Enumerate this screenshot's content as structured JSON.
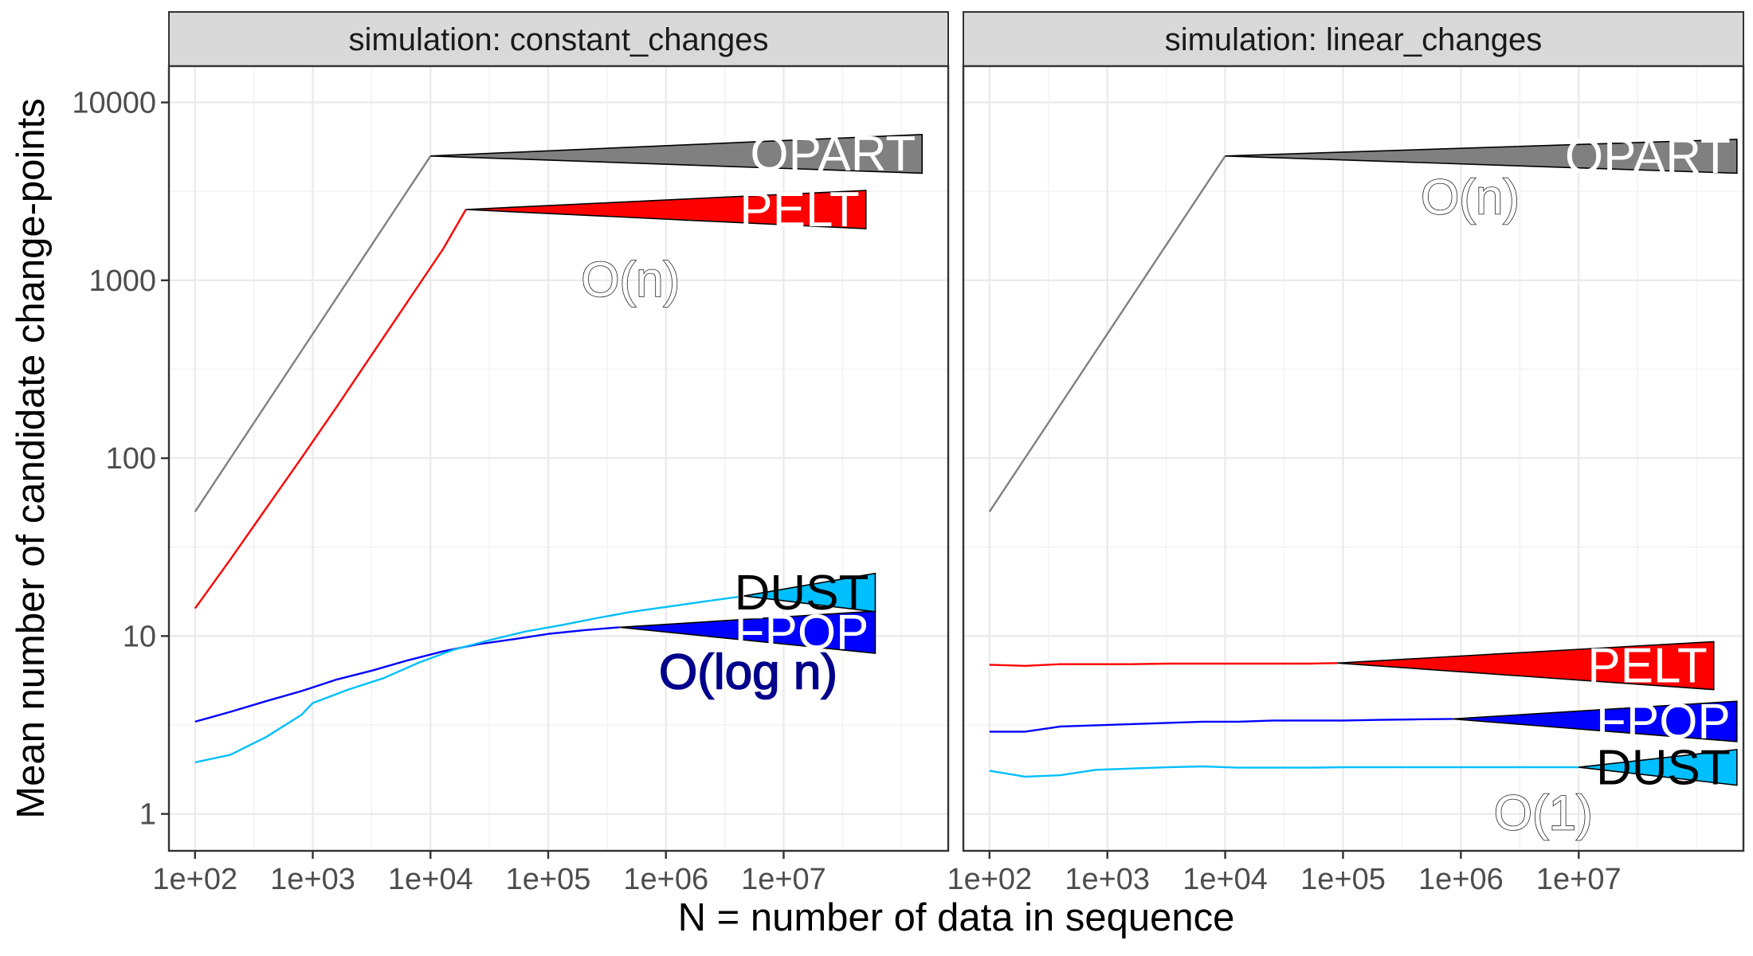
{
  "chart_data": {
    "type": "line",
    "scale": {
      "x": "log10",
      "y": "log10"
    },
    "xlabel": "N = number of data in sequence",
    "ylabel": "Mean number of candidate change-points",
    "x_ticks": [
      {
        "value": 100,
        "label": "1e+02"
      },
      {
        "value": 1000,
        "label": "1e+03"
      },
      {
        "value": 10000,
        "label": "1e+04"
      },
      {
        "value": 100000,
        "label": "1e+05"
      },
      {
        "value": 1000000,
        "label": "1e+06"
      },
      {
        "value": 10000000,
        "label": "1e+07"
      }
    ],
    "y_ticks": [
      {
        "value": 1,
        "label": "1"
      },
      {
        "value": 10,
        "label": "10"
      },
      {
        "value": 100,
        "label": "100"
      },
      {
        "value": 1000,
        "label": "1000"
      },
      {
        "value": 10000,
        "label": "10000"
      }
    ],
    "xlim": [
      60,
      250000000
    ],
    "ylim": [
      0.62,
      16000
    ],
    "grid": true,
    "colors": {
      "OPART": "#808080",
      "PELT": "#ff0000",
      "FPOP": "#0000ff",
      "DUST": "#00bfff",
      "strip_bg": "#d9d9d9",
      "grid": "#ebebeb",
      "complexity_blue": "#00008b"
    },
    "panels": [
      {
        "strip": "simulation: constant_changes",
        "series": [
          {
            "name": "OPART",
            "color": "#808080",
            "points": [
              [
                100,
                50
              ],
              [
                10000,
                5000
              ]
            ],
            "label": {
              "text": "OPART",
              "at": [
                10000,
                5000
              ],
              "tail_x": 150000000,
              "thick_y": [
                4000,
                6600
              ]
            }
          },
          {
            "name": "PELT",
            "color": "#ff0000",
            "points": [
              [
                100,
                14.3
              ],
              [
                200,
                27
              ],
              [
                400,
                52
              ],
              [
                800,
                100
              ],
              [
                1600,
                195
              ],
              [
                3200,
                385
              ],
              [
                6400,
                760
              ],
              [
                12800,
                1500
              ],
              [
                20000,
                2500
              ]
            ],
            "label": {
              "text": "PELT",
              "at": [
                20000,
                2500
              ],
              "tail_x": 50000000,
              "thick_y": [
                1950,
                3200
              ]
            }
          },
          {
            "name": "FPOP",
            "color": "#0000ff",
            "points": [
              [
                100,
                3.3
              ],
              [
                200,
                3.75
              ],
              [
                400,
                4.3
              ],
              [
                800,
                4.9
              ],
              [
                1600,
                5.7
              ],
              [
                3200,
                6.4
              ],
              [
                6400,
                7.3
              ],
              [
                12800,
                8.2
              ],
              [
                25600,
                9
              ],
              [
                51200,
                9.6
              ],
              [
                102400,
                10.3
              ],
              [
                204800,
                10.8
              ],
              [
                400000,
                11.2
              ]
            ],
            "label": {
              "text": "FPOP",
              "at": [
                400000,
                11.2
              ],
              "tail_x": 60000000,
              "thick_y": [
                8.0,
                13.8
              ]
            }
          },
          {
            "name": "DUST",
            "color": "#00bfff",
            "points": [
              [
                100,
                1.95
              ],
              [
                200,
                2.15
              ],
              [
                400,
                2.7
              ],
              [
                800,
                3.6
              ],
              [
                1000,
                4.2
              ],
              [
                2000,
                5.0
              ],
              [
                4000,
                5.8
              ],
              [
                8000,
                7.1
              ],
              [
                16000,
                8.4
              ],
              [
                32000,
                9.5
              ],
              [
                64000,
                10.6
              ],
              [
                128000,
                11.5
              ],
              [
                256000,
                12.6
              ],
              [
                512000,
                13.7
              ],
              [
                1024000,
                14.6
              ],
              [
                2048000,
                15.6
              ],
              [
                4096000,
                16.6
              ]
            ],
            "label": {
              "text": "DUST",
              "at": [
                4600000,
                16.8
              ],
              "tail_x": 60000000,
              "thick_y": [
                13.7,
                22.5
              ]
            }
          }
        ],
        "annotations": [
          {
            "text": "O(n)",
            "x": 500000,
            "y": 1000,
            "color": "#ffffff"
          },
          {
            "text": "O(log n)",
            "x": 5000000,
            "y": 6.2,
            "color": "#00008b"
          }
        ]
      },
      {
        "strip": "simulation: linear_changes",
        "series": [
          {
            "name": "OPART",
            "color": "#808080",
            "points": [
              [
                100,
                50
              ],
              [
                10000,
                5000
              ]
            ],
            "label": {
              "text": "OPART",
              "at": [
                10000,
                5000
              ],
              "tail_x": 220000000,
              "thick_y": [
                4000,
                6200
              ]
            }
          },
          {
            "name": "PELT",
            "color": "#ff0000",
            "points": [
              [
                100,
                6.9
              ],
              [
                200,
                6.8
              ],
              [
                400,
                6.95
              ],
              [
                800,
                6.95
              ],
              [
                1600,
                6.95
              ],
              [
                3200,
                7.0
              ],
              [
                6400,
                7.0
              ],
              [
                12800,
                7.0
              ],
              [
                25600,
                7.0
              ],
              [
                51200,
                7.0
              ],
              [
                90000,
                7.05
              ]
            ],
            "label": {
              "text": "PELT",
              "at": [
                90000,
                7.05
              ],
              "tail_x": 140000000,
              "thick_y": [
                5.0,
                9.3
              ]
            }
          },
          {
            "name": "FPOP",
            "color": "#0000ff",
            "points": [
              [
                100,
                2.9
              ],
              [
                200,
                2.9
              ],
              [
                400,
                3.1
              ],
              [
                800,
                3.15
              ],
              [
                1600,
                3.2
              ],
              [
                3200,
                3.25
              ],
              [
                6400,
                3.3
              ],
              [
                12800,
                3.3
              ],
              [
                25600,
                3.35
              ],
              [
                51200,
                3.35
              ],
              [
                102400,
                3.35
              ],
              [
                204800,
                3.38
              ],
              [
                409600,
                3.4
              ],
              [
                850000,
                3.42
              ]
            ],
            "label": {
              "text": "FPOP",
              "at": [
                850000,
                3.42
              ],
              "tail_x": 220000000,
              "thick_y": [
                2.55,
                4.3
              ]
            }
          },
          {
            "name": "DUST",
            "color": "#00bfff",
            "points": [
              [
                100,
                1.75
              ],
              [
                200,
                1.62
              ],
              [
                400,
                1.65
              ],
              [
                800,
                1.77
              ],
              [
                1600,
                1.8
              ],
              [
                3200,
                1.83
              ],
              [
                6400,
                1.85
              ],
              [
                12800,
                1.82
              ],
              [
                25600,
                1.82
              ],
              [
                51200,
                1.82
              ],
              [
                102400,
                1.83
              ],
              [
                204800,
                1.83
              ],
              [
                409600,
                1.83
              ],
              [
                819200,
                1.83
              ],
              [
                1638400,
                1.83
              ],
              [
                3276800,
                1.83
              ],
              [
                6553600,
                1.83
              ],
              [
                10000000,
                1.83
              ]
            ],
            "label": {
              "text": "DUST",
              "at": [
                10000000,
                1.83
              ],
              "tail_x": 220000000,
              "thick_y": [
                1.45,
                2.3
              ]
            }
          }
        ],
        "annotations": [
          {
            "text": "O(n)",
            "x": 1200000,
            "y": 2900,
            "color": "#ffffff"
          },
          {
            "text": "O(1)",
            "x": 5000000,
            "y": 1.0,
            "color": "#ffffff"
          }
        ]
      }
    ]
  }
}
